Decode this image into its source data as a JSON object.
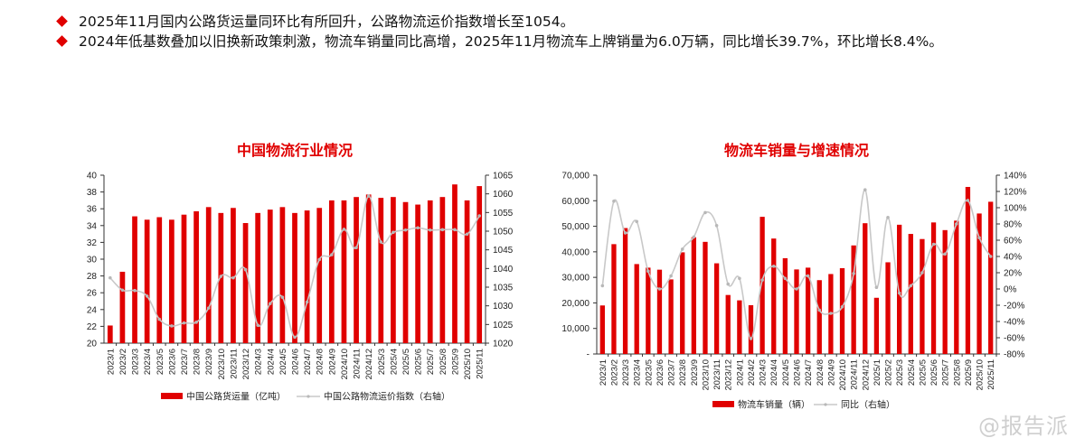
{
  "bullets": [
    "2025年11月国内公路货运量同环比有所回升，公路物流运价指数增长至1054。",
    "2024年低基数叠加以旧换新政策刺激，物流车销量同比高增，2025年11月物流车上牌销量为6.0万辆，同比增长39.7%，环比增长8.4%。"
  ],
  "watermark": "@报告派",
  "colors": {
    "bar": "#e00000",
    "line": "#c8c8c8",
    "axis": "#333333"
  },
  "chart_data": [
    {
      "type": "bar",
      "title": "中国物流行业情况",
      "categories": [
        "2023/1",
        "2023/2",
        "2023/3",
        "2023/4",
        "2023/5",
        "2023/6",
        "2023/7",
        "2023/8",
        "2023/9",
        "2023/10",
        "2023/11",
        "2023/12",
        "2024/3",
        "2024/4",
        "2024/5",
        "2024/6",
        "2024/7",
        "2024/8",
        "2024/9",
        "2024/10",
        "2024/11",
        "2024/12",
        "2025/3",
        "2025/4",
        "2025/5",
        "2025/6",
        "2025/7",
        "2025/8",
        "2025/9",
        "2025/10",
        "2025/11"
      ],
      "series": [
        {
          "name": "中国公路货运量（亿吨）",
          "axis": "left",
          "kind": "bar",
          "values": [
            22.1,
            28.5,
            35.1,
            34.7,
            35.0,
            34.7,
            35.3,
            35.7,
            36.2,
            35.5,
            36.1,
            34.3,
            35.5,
            35.9,
            36.2,
            35.5,
            35.8,
            36.1,
            37.0,
            37.0,
            37.4,
            37.7,
            37.3,
            37.4,
            36.8,
            36.5,
            37.0,
            37.4,
            38.9,
            37.0,
            38.7
          ]
        },
        {
          "name": "中国公路物流运价指数（右轴）",
          "axis": "right",
          "kind": "line",
          "values": [
            1037.5,
            1034.2,
            1034.1,
            1032.6,
            1026.4,
            1024.6,
            1025.4,
            1025.6,
            1029.4,
            1037.9,
            1037.5,
            1039.7,
            1024.8,
            1030.6,
            1032.3,
            1021.6,
            1031.0,
            1042.4,
            1043.7,
            1050.5,
            1045.6,
            1059.4,
            1047.1,
            1049.7,
            1050.3,
            1050.9,
            1050.3,
            1050.4,
            1050.4,
            1049.2,
            1054.1
          ]
        }
      ],
      "y_left": {
        "range": [
          20,
          40
        ],
        "ticks": [
          "20",
          "22",
          "24",
          "26",
          "28",
          "30",
          "32",
          "34",
          "36",
          "38",
          "40"
        ]
      },
      "y_right": {
        "range": [
          1020,
          1065
        ],
        "ticks": [
          "1020",
          "1025",
          "1030",
          "1035",
          "1040",
          "1045",
          "1050",
          "1055",
          "1060",
          "1065"
        ]
      },
      "legend": "bottom",
      "grid": false
    },
    {
      "type": "bar",
      "title": "物流车销量与增速情况",
      "categories": [
        "2023/1",
        "2023/2",
        "2023/3",
        "2023/4",
        "2023/5",
        "2023/6",
        "2023/7",
        "2023/8",
        "2023/9",
        "2023/10",
        "2023/11",
        "2023/12",
        "2024/1",
        "2024/2",
        "2024/3",
        "2024/4",
        "2024/5",
        "2024/6",
        "2024/7",
        "2024/8",
        "2024/9",
        "2024/10",
        "2024/11",
        "2024/12",
        "2025/1",
        "2025/2",
        "2025/3",
        "2025/4",
        "2025/5",
        "2025/6",
        "2025/7",
        "2025/8",
        "2025/9",
        "2025/10",
        "2025/11"
      ],
      "series": [
        {
          "name": "物流车销量（辆）",
          "axis": "left",
          "kind": "bar",
          "values": [
            19000,
            43000,
            49300,
            35200,
            33800,
            33000,
            29200,
            39800,
            45700,
            43900,
            35500,
            23100,
            21000,
            19100,
            53700,
            45200,
            37500,
            33100,
            33800,
            28900,
            31300,
            33600,
            42500,
            51200,
            22000,
            35900,
            50600,
            47000,
            45000,
            51500,
            48500,
            52200,
            65400,
            55000,
            59600
          ]
        },
        {
          "name": "同比（右轴）",
          "axis": "right",
          "kind": "line",
          "values": [
            4,
            108,
            69,
            83,
            22,
            0,
            16,
            49,
            64,
            94,
            78,
            6,
            13,
            -61,
            11,
            28,
            13,
            0,
            16,
            -26,
            -30,
            -22,
            19,
            122,
            2,
            88,
            -5,
            4,
            20,
            55,
            43,
            80,
            109,
            63,
            40
          ]
        }
      ],
      "y_left": {
        "range": [
          0,
          70000
        ],
        "ticks": [
          "-",
          "10,000",
          "20,000",
          "30,000",
          "40,000",
          "50,000",
          "60,000",
          "70,000"
        ]
      },
      "y_right": {
        "range": [
          -80,
          140
        ],
        "ticks": [
          "-80%",
          "-60%",
          "-40%",
          "-20%",
          "0%",
          "20%",
          "40%",
          "60%",
          "80%",
          "100%",
          "120%",
          "140%"
        ]
      },
      "legend": "bottom",
      "grid": false
    }
  ]
}
